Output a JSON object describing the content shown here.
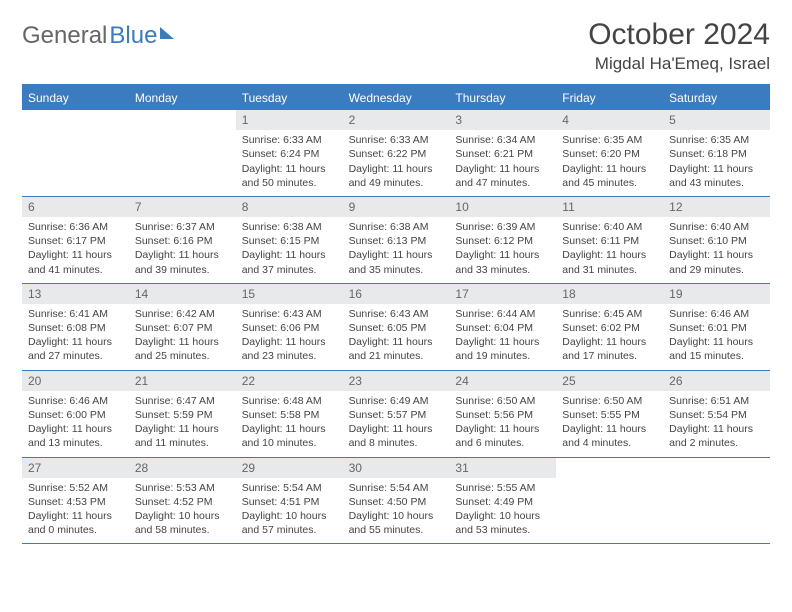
{
  "logo": {
    "part1": "General",
    "part2": "Blue"
  },
  "title": "October 2024",
  "location": "Migdal Ha'Emeq, Israel",
  "colors": {
    "header_bg": "#3b7bbf",
    "daynum_bg": "#e8e9ea",
    "text": "#444444",
    "background": "#ffffff"
  },
  "day_names": [
    "Sunday",
    "Monday",
    "Tuesday",
    "Wednesday",
    "Thursday",
    "Friday",
    "Saturday"
  ],
  "weeks": [
    [
      null,
      null,
      {
        "n": "1",
        "sr": "Sunrise: 6:33 AM",
        "ss": "Sunset: 6:24 PM",
        "d1": "Daylight: 11 hours",
        "d2": "and 50 minutes."
      },
      {
        "n": "2",
        "sr": "Sunrise: 6:33 AM",
        "ss": "Sunset: 6:22 PM",
        "d1": "Daylight: 11 hours",
        "d2": "and 49 minutes."
      },
      {
        "n": "3",
        "sr": "Sunrise: 6:34 AM",
        "ss": "Sunset: 6:21 PM",
        "d1": "Daylight: 11 hours",
        "d2": "and 47 minutes."
      },
      {
        "n": "4",
        "sr": "Sunrise: 6:35 AM",
        "ss": "Sunset: 6:20 PM",
        "d1": "Daylight: 11 hours",
        "d2": "and 45 minutes."
      },
      {
        "n": "5",
        "sr": "Sunrise: 6:35 AM",
        "ss": "Sunset: 6:18 PM",
        "d1": "Daylight: 11 hours",
        "d2": "and 43 minutes."
      }
    ],
    [
      {
        "n": "6",
        "sr": "Sunrise: 6:36 AM",
        "ss": "Sunset: 6:17 PM",
        "d1": "Daylight: 11 hours",
        "d2": "and 41 minutes."
      },
      {
        "n": "7",
        "sr": "Sunrise: 6:37 AM",
        "ss": "Sunset: 6:16 PM",
        "d1": "Daylight: 11 hours",
        "d2": "and 39 minutes."
      },
      {
        "n": "8",
        "sr": "Sunrise: 6:38 AM",
        "ss": "Sunset: 6:15 PM",
        "d1": "Daylight: 11 hours",
        "d2": "and 37 minutes."
      },
      {
        "n": "9",
        "sr": "Sunrise: 6:38 AM",
        "ss": "Sunset: 6:13 PM",
        "d1": "Daylight: 11 hours",
        "d2": "and 35 minutes."
      },
      {
        "n": "10",
        "sr": "Sunrise: 6:39 AM",
        "ss": "Sunset: 6:12 PM",
        "d1": "Daylight: 11 hours",
        "d2": "and 33 minutes."
      },
      {
        "n": "11",
        "sr": "Sunrise: 6:40 AM",
        "ss": "Sunset: 6:11 PM",
        "d1": "Daylight: 11 hours",
        "d2": "and 31 minutes."
      },
      {
        "n": "12",
        "sr": "Sunrise: 6:40 AM",
        "ss": "Sunset: 6:10 PM",
        "d1": "Daylight: 11 hours",
        "d2": "and 29 minutes."
      }
    ],
    [
      {
        "n": "13",
        "sr": "Sunrise: 6:41 AM",
        "ss": "Sunset: 6:08 PM",
        "d1": "Daylight: 11 hours",
        "d2": "and 27 minutes."
      },
      {
        "n": "14",
        "sr": "Sunrise: 6:42 AM",
        "ss": "Sunset: 6:07 PM",
        "d1": "Daylight: 11 hours",
        "d2": "and 25 minutes."
      },
      {
        "n": "15",
        "sr": "Sunrise: 6:43 AM",
        "ss": "Sunset: 6:06 PM",
        "d1": "Daylight: 11 hours",
        "d2": "and 23 minutes."
      },
      {
        "n": "16",
        "sr": "Sunrise: 6:43 AM",
        "ss": "Sunset: 6:05 PM",
        "d1": "Daylight: 11 hours",
        "d2": "and 21 minutes."
      },
      {
        "n": "17",
        "sr": "Sunrise: 6:44 AM",
        "ss": "Sunset: 6:04 PM",
        "d1": "Daylight: 11 hours",
        "d2": "and 19 minutes."
      },
      {
        "n": "18",
        "sr": "Sunrise: 6:45 AM",
        "ss": "Sunset: 6:02 PM",
        "d1": "Daylight: 11 hours",
        "d2": "and 17 minutes."
      },
      {
        "n": "19",
        "sr": "Sunrise: 6:46 AM",
        "ss": "Sunset: 6:01 PM",
        "d1": "Daylight: 11 hours",
        "d2": "and 15 minutes."
      }
    ],
    [
      {
        "n": "20",
        "sr": "Sunrise: 6:46 AM",
        "ss": "Sunset: 6:00 PM",
        "d1": "Daylight: 11 hours",
        "d2": "and 13 minutes."
      },
      {
        "n": "21",
        "sr": "Sunrise: 6:47 AM",
        "ss": "Sunset: 5:59 PM",
        "d1": "Daylight: 11 hours",
        "d2": "and 11 minutes."
      },
      {
        "n": "22",
        "sr": "Sunrise: 6:48 AM",
        "ss": "Sunset: 5:58 PM",
        "d1": "Daylight: 11 hours",
        "d2": "and 10 minutes."
      },
      {
        "n": "23",
        "sr": "Sunrise: 6:49 AM",
        "ss": "Sunset: 5:57 PM",
        "d1": "Daylight: 11 hours",
        "d2": "and 8 minutes."
      },
      {
        "n": "24",
        "sr": "Sunrise: 6:50 AM",
        "ss": "Sunset: 5:56 PM",
        "d1": "Daylight: 11 hours",
        "d2": "and 6 minutes."
      },
      {
        "n": "25",
        "sr": "Sunrise: 6:50 AM",
        "ss": "Sunset: 5:55 PM",
        "d1": "Daylight: 11 hours",
        "d2": "and 4 minutes."
      },
      {
        "n": "26",
        "sr": "Sunrise: 6:51 AM",
        "ss": "Sunset: 5:54 PM",
        "d1": "Daylight: 11 hours",
        "d2": "and 2 minutes."
      }
    ],
    [
      {
        "n": "27",
        "sr": "Sunrise: 5:52 AM",
        "ss": "Sunset: 4:53 PM",
        "d1": "Daylight: 11 hours",
        "d2": "and 0 minutes."
      },
      {
        "n": "28",
        "sr": "Sunrise: 5:53 AM",
        "ss": "Sunset: 4:52 PM",
        "d1": "Daylight: 10 hours",
        "d2": "and 58 minutes."
      },
      {
        "n": "29",
        "sr": "Sunrise: 5:54 AM",
        "ss": "Sunset: 4:51 PM",
        "d1": "Daylight: 10 hours",
        "d2": "and 57 minutes."
      },
      {
        "n": "30",
        "sr": "Sunrise: 5:54 AM",
        "ss": "Sunset: 4:50 PM",
        "d1": "Daylight: 10 hours",
        "d2": "and 55 minutes."
      },
      {
        "n": "31",
        "sr": "Sunrise: 5:55 AM",
        "ss": "Sunset: 4:49 PM",
        "d1": "Daylight: 10 hours",
        "d2": "and 53 minutes."
      },
      null,
      null
    ]
  ]
}
